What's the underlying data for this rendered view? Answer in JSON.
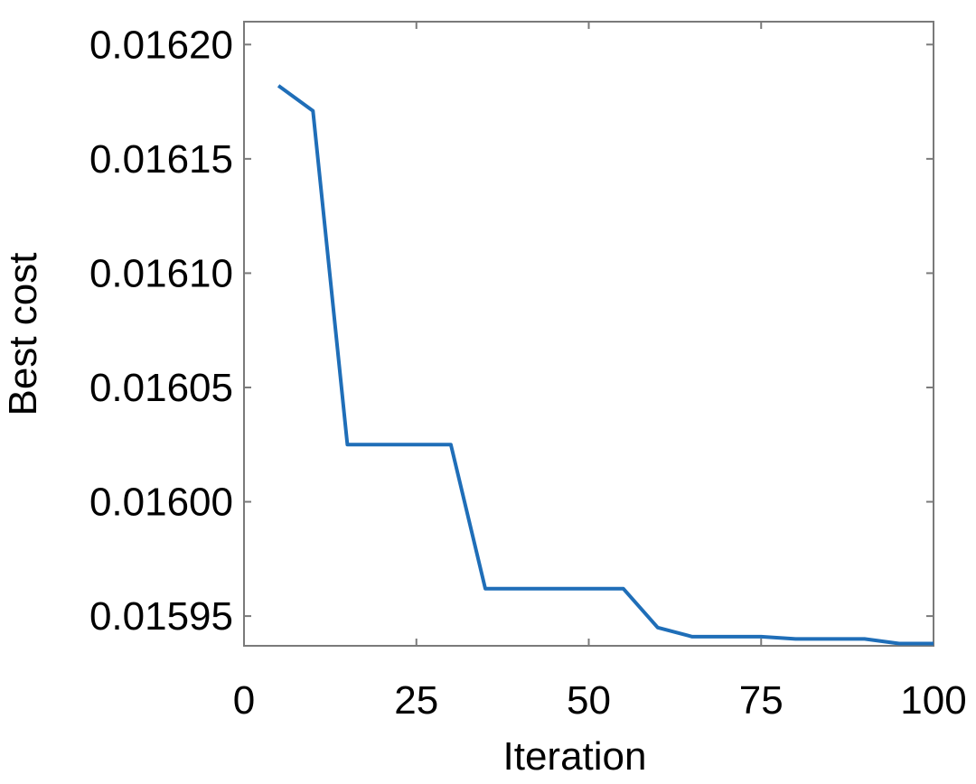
{
  "chart_data": {
    "type": "line",
    "title": "",
    "xlabel": "Iteration",
    "ylabel": "Best cost",
    "xlim": [
      0,
      100
    ],
    "ylim": [
      0.015937,
      0.01621
    ],
    "grid": false,
    "x_ticks": [
      0,
      25,
      50,
      75,
      100
    ],
    "x_tick_labels": [
      "0",
      "25",
      "50",
      "75",
      "100"
    ],
    "y_ticks": [
      0.01595,
      0.016,
      0.01605,
      0.0161,
      0.01615,
      0.0162
    ],
    "y_tick_labels": [
      "0.01595",
      "0.01600",
      "0.01605",
      "0.01610",
      "0.01615",
      "0.01620"
    ],
    "series": [
      {
        "color": "#1f6eb8",
        "x": [
          5,
          10,
          15,
          30,
          35,
          55,
          60,
          65,
          75,
          80,
          90,
          95,
          100
        ],
        "y": [
          0.016182,
          0.016171,
          0.016025,
          0.016025,
          0.015962,
          0.015962,
          0.015945,
          0.015941,
          0.015941,
          0.01594,
          0.01594,
          0.015938,
          0.015938
        ]
      }
    ]
  }
}
